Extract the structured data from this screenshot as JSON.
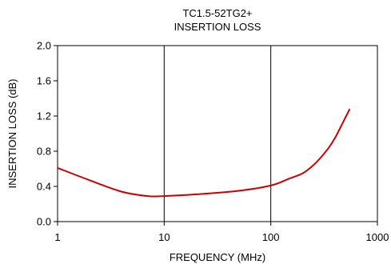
{
  "chart_data": {
    "type": "line",
    "title": "TC1.5-52TG2+",
    "subtitle": "INSERTION LOSS",
    "xlabel": "FREQUENCY (MHz)",
    "ylabel": "INSERTION LOSS (dB)",
    "x_scale": "log",
    "xlim": [
      1,
      1000
    ],
    "ylim": [
      0.0,
      2.0
    ],
    "x_ticks": [
      1,
      10,
      100,
      1000
    ],
    "x_tick_labels": [
      "1",
      "10",
      "100",
      "1000"
    ],
    "y_ticks": [
      0.0,
      0.4,
      0.8,
      1.2,
      1.6,
      2.0
    ],
    "y_tick_labels": [
      "0.0",
      "0.4",
      "0.8",
      "1.2",
      "1.6",
      "2.0"
    ],
    "grid": "x-major",
    "series": [
      {
        "color": "#cc0000",
        "x": [
          1,
          2,
          4,
          7,
          10,
          20,
          50,
          100,
          150,
          200,
          250,
          300,
          350,
          400,
          450,
          500,
          550
        ],
        "y": [
          0.61,
          0.47,
          0.34,
          0.29,
          0.29,
          0.31,
          0.35,
          0.41,
          0.49,
          0.55,
          0.64,
          0.74,
          0.84,
          0.95,
          1.07,
          1.18,
          1.28
        ]
      }
    ]
  }
}
